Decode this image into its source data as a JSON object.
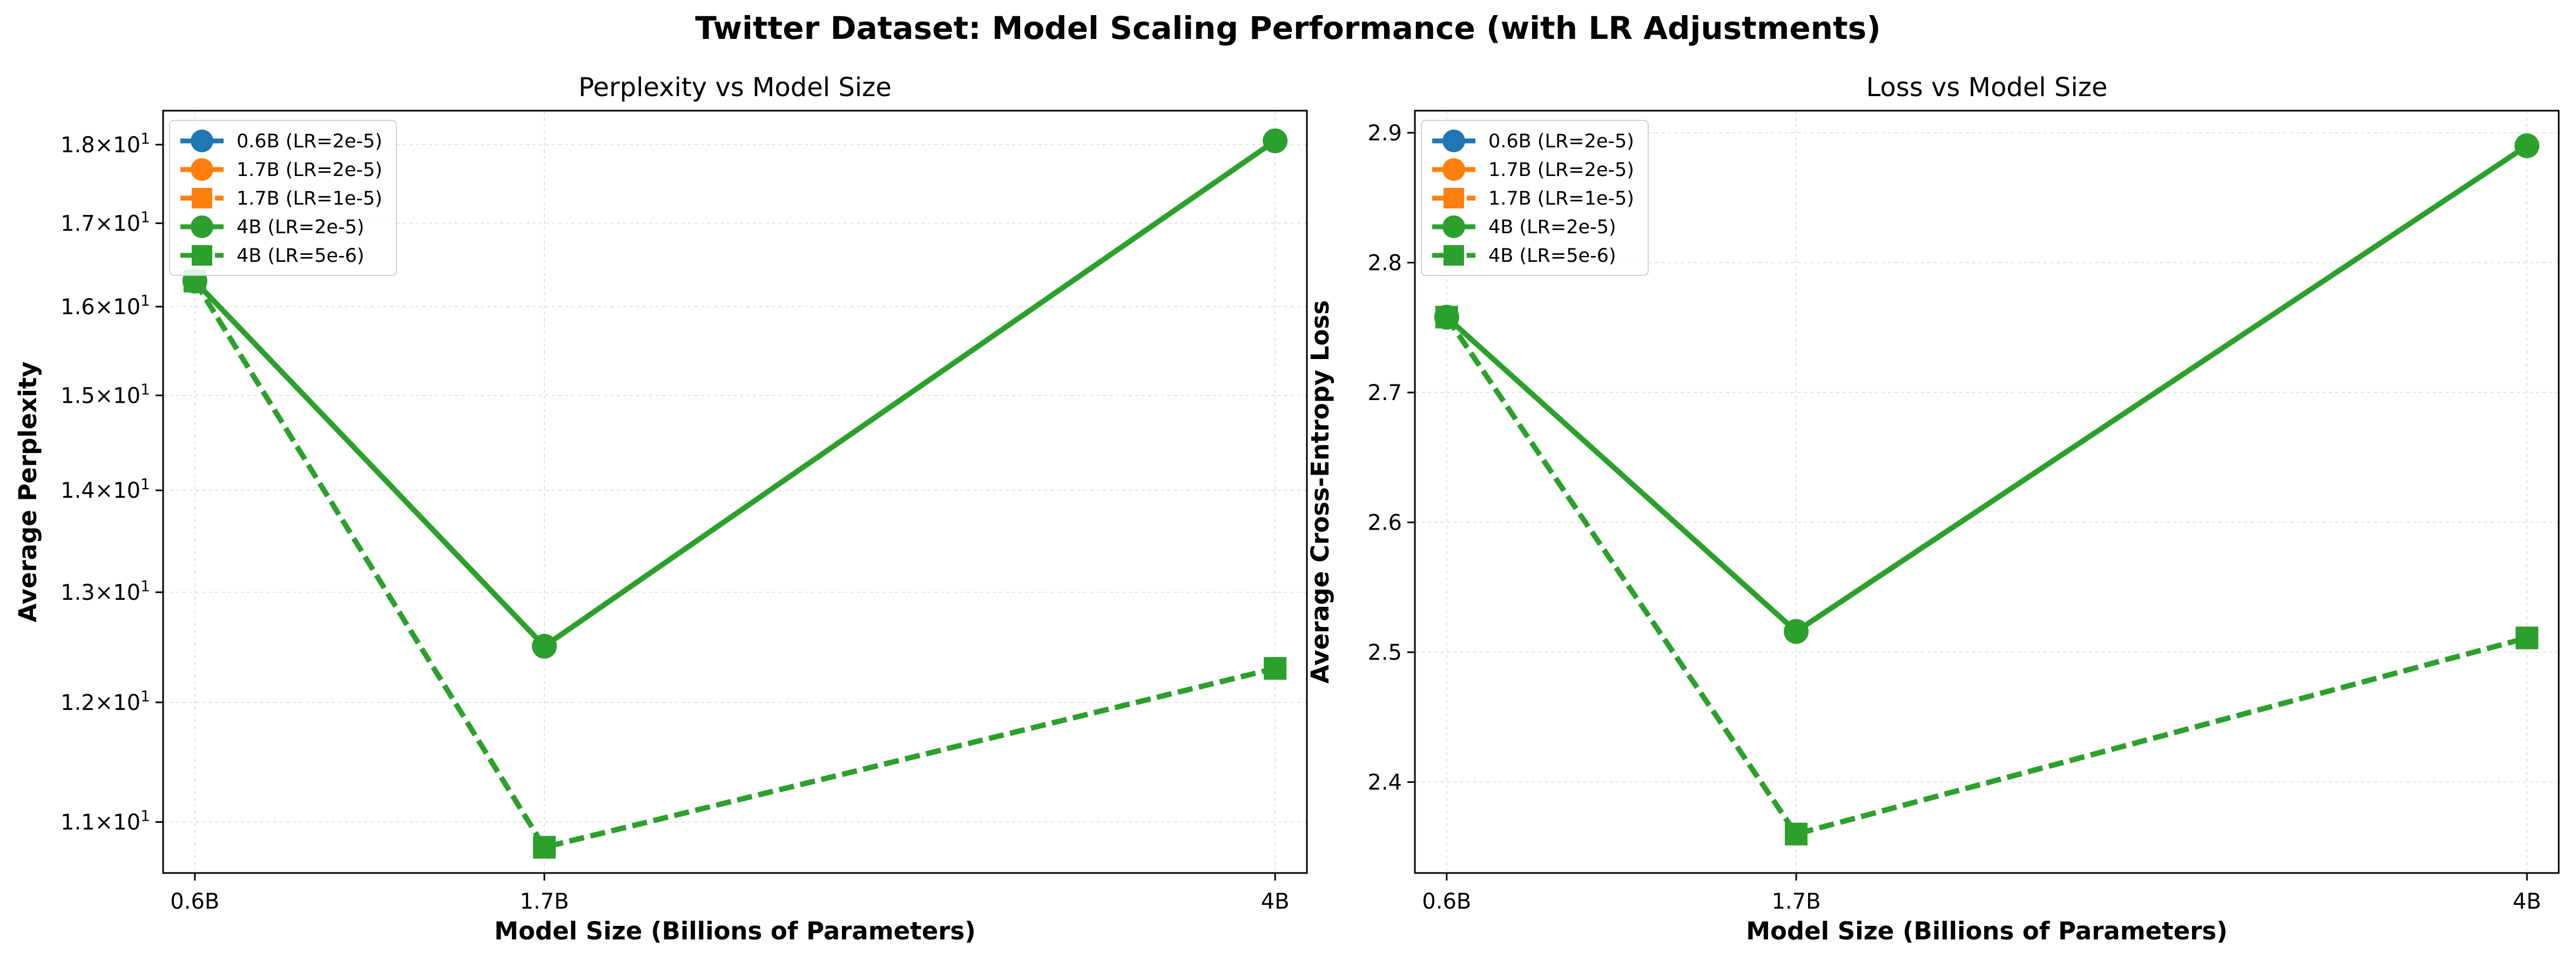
{
  "figure": {
    "title": "Twitter Dataset: Model Scaling Performance (with LR Adjustments)"
  },
  "colors": {
    "blue": "#1f77b4",
    "orange": "#ff7f0e",
    "green": "#2ca02c"
  },
  "chart_data": [
    {
      "type": "line",
      "title": "Perplexity vs Model Size",
      "xlabel": "Model Size (Billions of Parameters)",
      "ylabel": "Average Perplexity",
      "yscale": "log",
      "ylim": [
        10.6,
        18.45
      ],
      "grid": true,
      "legend_position": "top-left",
      "x_ticks": [
        0.6,
        1.7,
        4
      ],
      "x_tick_labels": [
        "0.6B",
        "1.7B",
        "4B"
      ],
      "y_ticks": [
        {
          "value": 11,
          "mantissa": "1.1",
          "base": "10",
          "exp": "1"
        },
        {
          "value": 12,
          "mantissa": "1.2",
          "base": "10",
          "exp": "1"
        },
        {
          "value": 13,
          "mantissa": "1.3",
          "base": "10",
          "exp": "1"
        },
        {
          "value": 14,
          "mantissa": "1.4",
          "base": "10",
          "exp": "1"
        },
        {
          "value": 15,
          "mantissa": "1.5",
          "base": "10",
          "exp": "1"
        },
        {
          "value": 16,
          "mantissa": "1.6",
          "base": "10",
          "exp": "1"
        },
        {
          "value": 17,
          "mantissa": "1.7",
          "base": "10",
          "exp": "1"
        },
        {
          "value": 18,
          "mantissa": "1.8",
          "base": "10",
          "exp": "1"
        }
      ],
      "series": [
        {
          "name": "0.6B (LR=2e-5)",
          "color": "#1f77b4",
          "marker": "circle",
          "linestyle": "solid",
          "points": [
            {
              "x": 0.6,
              "y": 16.3
            }
          ]
        },
        {
          "name": "1.7B (LR=2e-5)",
          "color": "#ff7f0e",
          "marker": "circle",
          "linestyle": "solid",
          "points": [
            {
              "x": 1.7,
              "y": 12.5
            }
          ]
        },
        {
          "name": "1.7B (LR=1e-5)",
          "color": "#ff7f0e",
          "marker": "square",
          "linestyle": "dashed",
          "points": [
            {
              "x": 1.7,
              "y": 10.8
            }
          ]
        },
        {
          "name": "4B (LR=2e-5)",
          "color": "#2ca02c",
          "marker": "circle",
          "linestyle": "solid",
          "points": [
            {
              "x": 0.6,
              "y": 16.3
            },
            {
              "x": 1.7,
              "y": 12.5
            },
            {
              "x": 4,
              "y": 18.05
            }
          ]
        },
        {
          "name": "4B (LR=5e-6)",
          "color": "#2ca02c",
          "marker": "square",
          "linestyle": "dashed",
          "points": [
            {
              "x": 0.6,
              "y": 16.3
            },
            {
              "x": 1.7,
              "y": 10.8
            },
            {
              "x": 4,
              "y": 12.3
            }
          ]
        }
      ]
    },
    {
      "type": "line",
      "title": "Loss vs Model Size",
      "xlabel": "Model Size (Billions of Parameters)",
      "ylabel": "Average Cross-Entropy Loss",
      "yscale": "linear",
      "ylim": [
        2.33,
        2.917
      ],
      "grid": true,
      "legend_position": "top-left",
      "x_ticks": [
        0.6,
        1.7,
        4
      ],
      "x_tick_labels": [
        "0.6B",
        "1.7B",
        "4B"
      ],
      "y_ticks": [
        {
          "value": 2.4,
          "label": "2.4"
        },
        {
          "value": 2.5,
          "label": "2.5"
        },
        {
          "value": 2.6,
          "label": "2.6"
        },
        {
          "value": 2.7,
          "label": "2.7"
        },
        {
          "value": 2.8,
          "label": "2.8"
        },
        {
          "value": 2.9,
          "label": "2.9"
        }
      ],
      "series": [
        {
          "name": "0.6B (LR=2e-5)",
          "color": "#1f77b4",
          "marker": "circle",
          "linestyle": "solid",
          "points": [
            {
              "x": 0.6,
              "y": 2.758
            }
          ]
        },
        {
          "name": "1.7B (LR=2e-5)",
          "color": "#ff7f0e",
          "marker": "circle",
          "linestyle": "solid",
          "points": [
            {
              "x": 1.7,
              "y": 2.516
            }
          ]
        },
        {
          "name": "1.7B (LR=1e-5)",
          "color": "#ff7f0e",
          "marker": "square",
          "linestyle": "dashed",
          "points": [
            {
              "x": 1.7,
              "y": 2.36
            }
          ]
        },
        {
          "name": "4B (LR=2e-5)",
          "color": "#2ca02c",
          "marker": "circle",
          "linestyle": "solid",
          "points": [
            {
              "x": 0.6,
              "y": 2.758
            },
            {
              "x": 1.7,
              "y": 2.516
            },
            {
              "x": 4,
              "y": 2.89
            }
          ]
        },
        {
          "name": "4B (LR=5e-6)",
          "color": "#2ca02c",
          "marker": "square",
          "linestyle": "dashed",
          "points": [
            {
              "x": 0.6,
              "y": 2.758
            },
            {
              "x": 1.7,
              "y": 2.36
            },
            {
              "x": 4,
              "y": 2.511
            }
          ]
        }
      ]
    }
  ]
}
